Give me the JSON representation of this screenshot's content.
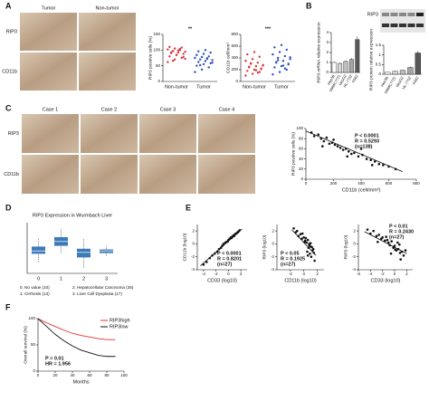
{
  "panel_labels": [
    "A",
    "B",
    "C",
    "D",
    "E",
    "F"
  ],
  "image_grids": [
    {
      "columns": [
        "Tumor",
        "Non-tumor"
      ],
      "rows": [
        "RIP3",
        "CD11b"
      ]
    },
    {
      "columns": [
        "Case 1",
        "Case 2",
        "Case 3",
        "Case 4"
      ],
      "rows": [
        "RIP3",
        "CD11b"
      ]
    }
  ],
  "blot": {
    "rows": [
      "RIP3"
    ]
  },
  "plots": [
    {
      "type": "dot",
      "ylabel": "RIP3 positive cells (%)",
      "ylim": [
        0,
        150
      ],
      "yticks": [
        0,
        50,
        100,
        150
      ],
      "annotation": [
        "**"
      ],
      "series": [
        {
          "name": "Non-tumor",
          "color": "#d9363e",
          "values": [
            62,
            70,
            75,
            80,
            84,
            88,
            90,
            92,
            95,
            97,
            100,
            102,
            105,
            108,
            110,
            85,
            78,
            93,
            99,
            72,
            66,
            104
          ]
        },
        {
          "name": "Tumor",
          "color": "#2a4fc0",
          "values": [
            30,
            38,
            45,
            50,
            55,
            58,
            62,
            65,
            68,
            70,
            72,
            75,
            78,
            80,
            84,
            88,
            92,
            96,
            100,
            60,
            52,
            74
          ]
        }
      ]
    },
    {
      "type": "dot",
      "ylabel": "CD11b cell/mm²",
      "ylim": [
        0,
        800
      ],
      "yticks": [
        0,
        200,
        400,
        600,
        800
      ],
      "annotation": [
        "***"
      ],
      "series": [
        {
          "name": "Non-tumor",
          "color": "#d9363e",
          "values": [
            100,
            130,
            160,
            180,
            200,
            220,
            240,
            260,
            280,
            300,
            320,
            350,
            380,
            420,
            460,
            500,
            210,
            250,
            190,
            270,
            310,
            150
          ]
        },
        {
          "name": "Tumor",
          "color": "#2a4fc0",
          "values": [
            120,
            160,
            200,
            240,
            260,
            290,
            320,
            350,
            380,
            400,
            430,
            460,
            500,
            540,
            580,
            620,
            300,
            330,
            270,
            410,
            360,
            220
          ]
        }
      ]
    },
    {
      "type": "bar",
      "ylabel": "RIP3 mRNA relative expression",
      "ylim": [
        0,
        4
      ],
      "yticks": [
        0,
        1,
        2,
        3,
        4
      ],
      "categories": [
        "Hep3B",
        "SMMC7721",
        "HepG2",
        "HL-7702",
        "K562"
      ],
      "values": [
        1.0,
        0.9,
        1.1,
        1.3,
        3.3
      ],
      "errors": [
        0.1,
        0.1,
        0.1,
        0.15,
        0.3
      ],
      "colors": [
        "#ffffff",
        "#d9d9d9",
        "#bfbfbf",
        "#a6a6a6",
        "#595959"
      ]
    },
    {
      "type": "bar",
      "ylabel": "RIP3 protein relative expression",
      "ylim": [
        0,
        1.5
      ],
      "yticks": [
        0,
        0.5,
        1,
        1.5
      ],
      "categories": [
        "Hep3B",
        "SMMC7721",
        "HepG2",
        "HL-7702",
        "K562"
      ],
      "values": [
        0.1,
        0.15,
        0.2,
        0.35,
        1.1
      ],
      "errors": [
        0.02,
        0.03,
        0.03,
        0.05,
        0.1
      ],
      "colors": [
        "#ffffff",
        "#d9d9d9",
        "#bfbfbf",
        "#a6a6a6",
        "#595959"
      ]
    },
    {
      "type": "scatter",
      "xlabel": "CD11b (cell/mm²)",
      "ylabel": "RIP3 positive cells (%)",
      "xlim": [
        0,
        800
      ],
      "ylim": [
        0,
        100
      ],
      "xticks": [
        0,
        200,
        400,
        600,
        800
      ],
      "yticks": [
        0,
        20,
        40,
        60,
        80,
        100
      ],
      "annotation": [
        "P < 0.0001",
        "R = 0.5293",
        "(n=138)"
      ],
      "x": [
        40,
        60,
        90,
        110,
        130,
        150,
        170,
        190,
        210,
        230,
        250,
        270,
        290,
        310,
        330,
        350,
        380,
        410,
        440,
        470,
        500,
        530,
        560,
        600,
        650,
        120,
        200,
        300,
        400,
        480
      ],
      "y": [
        92,
        85,
        88,
        80,
        75,
        82,
        70,
        72,
        68,
        65,
        62,
        58,
        60,
        55,
        50,
        52,
        45,
        48,
        40,
        38,
        35,
        30,
        28,
        25,
        20,
        65,
        78,
        45,
        60,
        28
      ],
      "fit_x": [
        0,
        700
      ],
      "fit_y": [
        95,
        15
      ]
    },
    {
      "type": "box",
      "title": "RIP3 Expression in Wurmbach Liver",
      "ylim": [
        -3,
        4
      ],
      "categories": [
        "0",
        "1",
        "2",
        "3"
      ],
      "color": "#3d7ab8",
      "boxes": [
        {
          "min": -1.5,
          "q1": -0.3,
          "median": 0.1,
          "q3": 0.7,
          "max": 1.8
        },
        {
          "min": -0.2,
          "q1": 0.8,
          "median": 1.4,
          "q3": 2.0,
          "max": 3.1
        },
        {
          "min": -2.2,
          "q1": -0.8,
          "median": -0.1,
          "q3": 0.4,
          "max": 1.8
        },
        {
          "min": -0.6,
          "q1": -0.2,
          "median": 0.1,
          "q3": 0.3,
          "max": 0.8
        }
      ],
      "legend": [
        "0. No value (10)",
        "2. Hepatocellular Carcinoma (35)",
        "1. Cirrhosis (13)",
        "3. Liver Cell Dysplasia (17)"
      ]
    },
    {
      "type": "scatter",
      "xlabel": "CD33 (log10)",
      "ylabel": "CD11b (log10)",
      "xlim": [
        -5,
        3
      ],
      "ylim": [
        -4,
        3
      ],
      "xticks": [
        -4,
        -2,
        0,
        2
      ],
      "yticks": [
        -4,
        -2,
        0,
        2
      ],
      "annotation": [
        "P < 0.0001",
        "R = 0.8201",
        "(n=27)"
      ],
      "x": [
        -4,
        -3.5,
        -3,
        -2.6,
        -2.2,
        -1.8,
        -1.5,
        -1.2,
        -1,
        -0.8,
        -0.5,
        -0.3,
        0,
        0.2,
        0.4,
        0.6,
        0.8,
        1,
        1.2,
        1.4,
        1.6,
        1.8,
        0.5,
        1.1,
        -0.1,
        0.9,
        1.5
      ],
      "y": [
        -3.2,
        -2.8,
        -2.2,
        -1.8,
        -1.5,
        -1.2,
        -0.8,
        -0.6,
        -0.3,
        0,
        0.2,
        0.3,
        0.6,
        0.8,
        1,
        1.1,
        1.3,
        1.4,
        1.6,
        1.7,
        1.9,
        2.1,
        0.9,
        1.5,
        0.4,
        1.2,
        1.8
      ],
      "fit_x": [
        -4.5,
        2.2
      ],
      "fit_y": [
        -3.4,
        2.3
      ]
    },
    {
      "type": "scatter",
      "xlabel": "CD11b (log10)",
      "ylabel": "RIP3 (log10)",
      "xlim": [
        -4,
        3
      ],
      "ylim": [
        -4,
        3
      ],
      "xticks": [
        -2,
        0,
        2
      ],
      "yticks": [
        -4,
        -2,
        0,
        2
      ],
      "annotation": [
        "P < 0.05",
        "R = 0.1925",
        "(n=27)"
      ],
      "x": [
        -1.5,
        -1.2,
        -1,
        -0.8,
        -0.5,
        -0.3,
        0,
        0.2,
        0.4,
        0.6,
        0.8,
        1,
        1.2,
        1.4,
        0.5,
        0.9,
        1.1,
        0.3,
        -0.2,
        0.7,
        1.3,
        1.6,
        0.1,
        0.6,
        1.0,
        1.5,
        0.8
      ],
      "y": [
        2.4,
        1.8,
        2.0,
        1.2,
        1.5,
        0.8,
        1.0,
        0.5,
        0.2,
        0.6,
        -0.2,
        0.1,
        -0.5,
        -0.8,
        -1.2,
        -1.5,
        -2.0,
        0.9,
        1.6,
        -0.6,
        -1.0,
        -2.6,
        0.3,
        -1.8,
        -0.4,
        -1.4,
        0.0
      ],
      "fit_x": [
        -1.8,
        1.8
      ],
      "fit_y": [
        2.2,
        -1.8
      ]
    },
    {
      "type": "scatter",
      "xlabel": "CD33 (log10)",
      "ylabel": "RIP3 (log10)",
      "xlim": [
        -6,
        3
      ],
      "ylim": [
        -4,
        3
      ],
      "xticks": [
        -6,
        -4,
        -2,
        0,
        2
      ],
      "yticks": [
        -4,
        -2,
        0,
        2
      ],
      "annotation": [
        "P < 0.01",
        "R = 0.2430",
        "(n=27)"
      ],
      "x": [
        -4.5,
        -4,
        -3.5,
        -3,
        -2.6,
        -2.2,
        -2,
        -1.6,
        -1.2,
        -1,
        -0.8,
        -0.5,
        -0.2,
        0,
        0.3,
        0.6,
        0.9,
        1.2,
        1.5,
        -1.4,
        -0.6,
        0.5,
        1.0,
        -2.8,
        0.1,
        0.8,
        1.8
      ],
      "y": [
        2.2,
        1.6,
        2.0,
        1.2,
        1.4,
        0.8,
        1.0,
        0.5,
        0.6,
        0.2,
        -0.2,
        0.4,
        -0.6,
        -0.3,
        -1.0,
        -0.8,
        -1.4,
        -1.2,
        -1.8,
        1.1,
        -1.5,
        0.2,
        -2.4,
        0.3,
        -0.9,
        -0.1,
        -1.0
      ],
      "fit_x": [
        -5,
        2
      ],
      "fit_y": [
        1.9,
        -1.5
      ]
    },
    {
      "type": "survival",
      "xlabel": "Months",
      "ylabel": "Overall survival (%)",
      "xlim": [
        0,
        100
      ],
      "ylim": [
        0,
        100
      ],
      "xticks": [
        0,
        20,
        40,
        60,
        80,
        100
      ],
      "yticks": [
        0,
        50,
        100
      ],
      "annotation": [
        "P = 0.01",
        "HR = 1.956"
      ],
      "series": [
        {
          "name": "RIP3high",
          "color": "#e0302c",
          "x": [
            0,
            10,
            20,
            30,
            40,
            50,
            60,
            70,
            80,
            90
          ],
          "y": [
            100,
            92,
            85,
            78,
            72,
            68,
            65,
            62,
            60,
            60
          ]
        },
        {
          "name": "RIP3low",
          "color": "#111111",
          "x": [
            0,
            10,
            20,
            30,
            40,
            50,
            60,
            70,
            80,
            90
          ],
          "y": [
            100,
            85,
            70,
            58,
            48,
            40,
            35,
            30,
            28,
            28
          ]
        }
      ]
    }
  ]
}
